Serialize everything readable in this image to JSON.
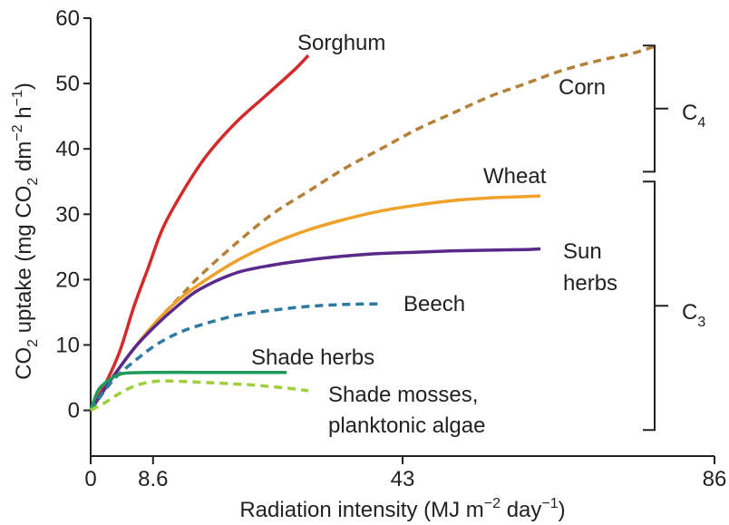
{
  "chart_data": {
    "type": "line",
    "title": "",
    "xlabel": {
      "pre": "Radiation intensity (MJ m",
      "sup1": "−2",
      "mid": " day",
      "sup2": "−1",
      "post": ")"
    },
    "ylabel": {
      "pre": "CO",
      "sub1": "2",
      "mid1": " uptake (mg CO",
      "sub2": "2",
      "mid2": " dm",
      "sup1": "−2",
      "mid3": " h",
      "sup2": "−1",
      "post": ")"
    },
    "xlim": [
      0,
      86
    ],
    "ylim": [
      -7,
      60
    ],
    "xticks": [
      0,
      8.6,
      43,
      86
    ],
    "xtick_labels": [
      "0",
      "8.6",
      "43",
      "86"
    ],
    "yticks": [
      0,
      10,
      20,
      30,
      40,
      50,
      60
    ],
    "ytick_labels": [
      "0",
      "10",
      "20",
      "30",
      "40",
      "50",
      "60"
    ],
    "grid": false,
    "series": [
      {
        "name": "Sorghum",
        "color": "#d42a2a",
        "dashed": false,
        "points": [
          [
            0,
            0
          ],
          [
            2,
            4
          ],
          [
            4,
            9
          ],
          [
            6,
            16
          ],
          [
            8,
            22
          ],
          [
            10,
            28
          ],
          [
            13,
            34
          ],
          [
            16,
            39
          ],
          [
            20,
            44
          ],
          [
            24,
            48
          ],
          [
            28,
            52
          ],
          [
            30,
            54.3
          ]
        ]
      },
      {
        "name": "Corn",
        "color": "#b5803a",
        "dashed": true,
        "points": [
          [
            0,
            0
          ],
          [
            3,
            5
          ],
          [
            6,
            9.5
          ],
          [
            9,
            13.5
          ],
          [
            12,
            17
          ],
          [
            15,
            20.5
          ],
          [
            20,
            25.5
          ],
          [
            25,
            30
          ],
          [
            30,
            33.5
          ],
          [
            35,
            37
          ],
          [
            40,
            40
          ],
          [
            45,
            43
          ],
          [
            50,
            45.5
          ],
          [
            55,
            48
          ],
          [
            60,
            50
          ],
          [
            65,
            52
          ],
          [
            70,
            53.5
          ],
          [
            75,
            54.7
          ],
          [
            78,
            55.8
          ]
        ]
      },
      {
        "name": "Wheat",
        "color": "#f0a12a",
        "dashed": false,
        "points": [
          [
            0,
            0
          ],
          [
            3,
            5
          ],
          [
            6,
            9.5
          ],
          [
            9,
            13.5
          ],
          [
            12,
            16.8
          ],
          [
            15,
            19.3
          ],
          [
            20,
            22.8
          ],
          [
            25,
            25.5
          ],
          [
            30,
            27.6
          ],
          [
            35,
            29.2
          ],
          [
            40,
            30.5
          ],
          [
            45,
            31.4
          ],
          [
            50,
            32.1
          ],
          [
            55,
            32.5
          ],
          [
            60,
            32.7
          ],
          [
            62,
            32.8
          ]
        ]
      },
      {
        "name": "Sun herbs",
        "color": "#5a2a8a",
        "dashed": false,
        "points": [
          [
            0,
            0
          ],
          [
            3,
            5
          ],
          [
            6,
            9.5
          ],
          [
            9,
            13
          ],
          [
            12,
            16
          ],
          [
            15,
            18.5
          ],
          [
            20,
            21
          ],
          [
            25,
            22.2
          ],
          [
            30,
            23
          ],
          [
            35,
            23.6
          ],
          [
            40,
            24
          ],
          [
            45,
            24.2
          ],
          [
            50,
            24.4
          ],
          [
            55,
            24.5
          ],
          [
            60,
            24.6
          ],
          [
            62,
            24.7
          ]
        ]
      },
      {
        "name": "Beech",
        "color": "#2e7aa0",
        "dashed": true,
        "points": [
          [
            0,
            0
          ],
          [
            3,
            4.5
          ],
          [
            6,
            7.5
          ],
          [
            9,
            10
          ],
          [
            12,
            11.8
          ],
          [
            15,
            13
          ],
          [
            20,
            14.5
          ],
          [
            25,
            15.3
          ],
          [
            30,
            15.9
          ],
          [
            35,
            16.2
          ],
          [
            40,
            16.3
          ]
        ]
      },
      {
        "name": "Shade herbs",
        "color": "#1f9a5a",
        "dashed": false,
        "points": [
          [
            0,
            0
          ],
          [
            1,
            3
          ],
          [
            2,
            4.2
          ],
          [
            3,
            5
          ],
          [
            4,
            5.5
          ],
          [
            5,
            5.7
          ],
          [
            8,
            5.8
          ],
          [
            15,
            5.8
          ],
          [
            22,
            5.8
          ],
          [
            27,
            5.8
          ]
        ]
      },
      {
        "name": "Shade mosses, planktonic algae",
        "color": "#9fcf3a",
        "dashed": true,
        "points": [
          [
            0,
            0
          ],
          [
            2,
            1.2
          ],
          [
            4,
            2.6
          ],
          [
            6,
            3.7
          ],
          [
            8,
            4.3
          ],
          [
            10,
            4.5
          ],
          [
            13,
            4.4
          ],
          [
            17,
            4.2
          ],
          [
            22,
            3.9
          ],
          [
            27,
            3.4
          ],
          [
            30,
            3
          ]
        ]
      }
    ],
    "labels": {
      "sorghum": "Sorghum",
      "corn": "Corn",
      "wheat": "Wheat",
      "sun_herbs_1": "Sun",
      "sun_herbs_2": "herbs",
      "beech": "Beech",
      "shade_herbs": "Shade herbs",
      "shade_mosses_1": "Shade mosses,",
      "shade_mosses_2": "planktonic algae"
    },
    "groups": [
      {
        "name": "C",
        "sub": "4",
        "members": [
          "Sorghum",
          "Corn"
        ],
        "range": [
          36.5,
          55.8
        ]
      },
      {
        "name": "C",
        "sub": "3",
        "members": [
          "Wheat",
          "Sun herbs",
          "Beech",
          "Shade herbs",
          "Shade mosses, planktonic algae"
        ],
        "range": [
          -3,
          35
        ]
      }
    ]
  }
}
